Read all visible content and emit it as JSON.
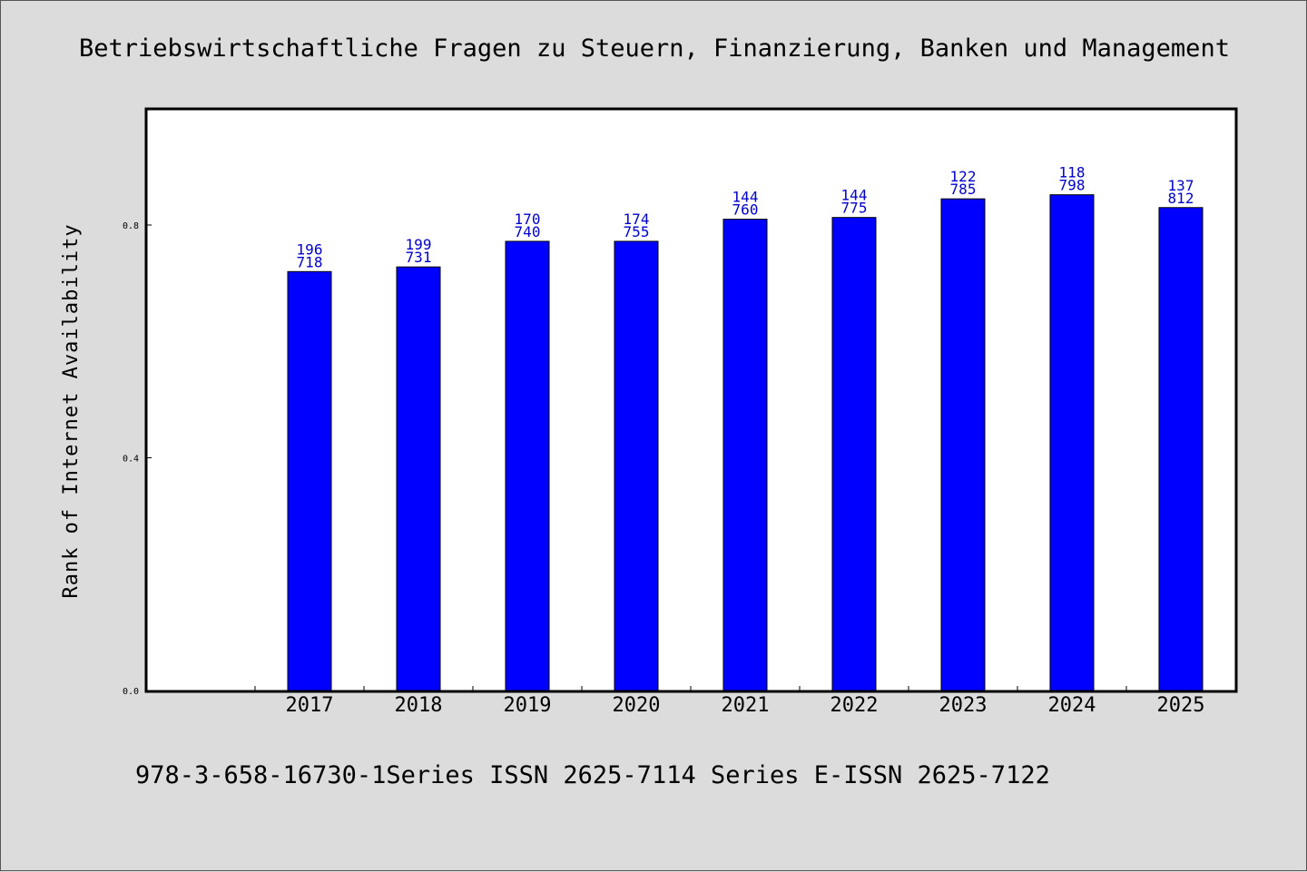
{
  "chart_data": {
    "type": "bar",
    "title": "Betriebswirtschaftliche Fragen zu Steuern, Finanzierung, Banken und Management",
    "ylabel": "Rank of Internet Availability",
    "xlabel": "",
    "categories": [
      "2017",
      "2018",
      "2019",
      "2020",
      "2021",
      "2022",
      "2023",
      "2024",
      "2025"
    ],
    "values": [
      0.72,
      0.728,
      0.772,
      0.772,
      0.81,
      0.813,
      0.845,
      0.852,
      0.83
    ],
    "label_top": [
      "196",
      "199",
      "170",
      "174",
      "144",
      "144",
      "122",
      "118",
      "137"
    ],
    "label_bottom": [
      "718",
      "731",
      "740",
      "755",
      "760",
      "775",
      "785",
      "798",
      "812"
    ],
    "ylim": [
      0,
      1.0
    ],
    "yticks": [
      "0.0",
      "0.4",
      "0.8"
    ],
    "grid": false,
    "bar_color": "#0000ff",
    "label_color": "#0000cc"
  },
  "footer_text": "978-3-658-16730-1Series ISSN 2625-7114 Series E-ISSN 2625-7122"
}
